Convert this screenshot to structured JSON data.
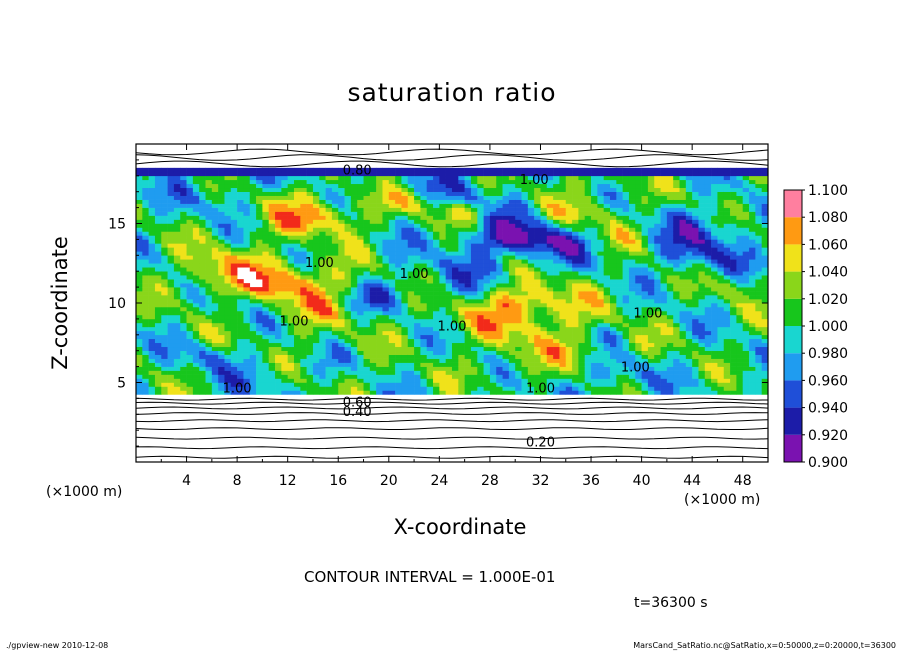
{
  "chart_data": {
    "type": "heatmap",
    "title": "saturation ratio",
    "xlabel": "X-coordinate",
    "ylabel": "Z-coordinate",
    "x_unit": "(×1000 m)",
    "xlim": [
      0,
      50
    ],
    "ylim": [
      0,
      20
    ],
    "x_ticks": [
      4,
      8,
      12,
      16,
      20,
      24,
      28,
      32,
      36,
      40,
      44,
      48
    ],
    "y_ticks": [
      5,
      10,
      15
    ],
    "colorbar": {
      "levels": [
        0.9,
        0.92,
        0.94,
        0.96,
        0.98,
        1.0,
        1.02,
        1.04,
        1.06,
        1.08,
        1.1
      ],
      "labels": [
        "0.900",
        "0.920",
        "0.940",
        "0.960",
        "0.980",
        "1.000",
        "1.020",
        "1.040",
        "1.060",
        "1.080",
        "1.100"
      ],
      "colors": [
        "#7a12b0",
        "#1c1ca8",
        "#1f4fd8",
        "#1f9cf0",
        "#19d6d0",
        "#17c61c",
        "#8ad61a",
        "#f0e21a",
        "#ff9a12",
        "#f22a1a",
        "#ff7f9f"
      ]
    },
    "contour_labels": [
      {
        "x": 17.5,
        "z": 18.3,
        "text": "0.80"
      },
      {
        "x": 31.5,
        "z": 17.7,
        "text": "1.00"
      },
      {
        "x": 14.5,
        "z": 12.5,
        "text": "1.00"
      },
      {
        "x": 22.0,
        "z": 11.8,
        "text": "1.00"
      },
      {
        "x": 12.5,
        "z": 8.8,
        "text": "1.00"
      },
      {
        "x": 25.0,
        "z": 8.5,
        "text": "1.00"
      },
      {
        "x": 40.5,
        "z": 9.3,
        "text": "1.00"
      },
      {
        "x": 8.0,
        "z": 4.6,
        "text": "1.00"
      },
      {
        "x": 32.0,
        "z": 4.6,
        "text": "1.00"
      },
      {
        "x": 39.5,
        "z": 5.9,
        "text": "1.00"
      },
      {
        "x": 17.5,
        "z": 3.7,
        "text": "0.60"
      },
      {
        "x": 17.5,
        "z": 3.1,
        "text": "0.40"
      },
      {
        "x": 32.0,
        "z": 1.2,
        "text": "0.20"
      }
    ]
  },
  "annotations": {
    "contour_interval": "CONTOUR INTERVAL = 1.000E-01",
    "time": "t=36300 s",
    "footer_left": "./gpview-new   2010-12-08",
    "footer_right": "MarsCand_SatRatio.nc@SatRatio,x=0:50000,z=0:20000,t=36300"
  }
}
